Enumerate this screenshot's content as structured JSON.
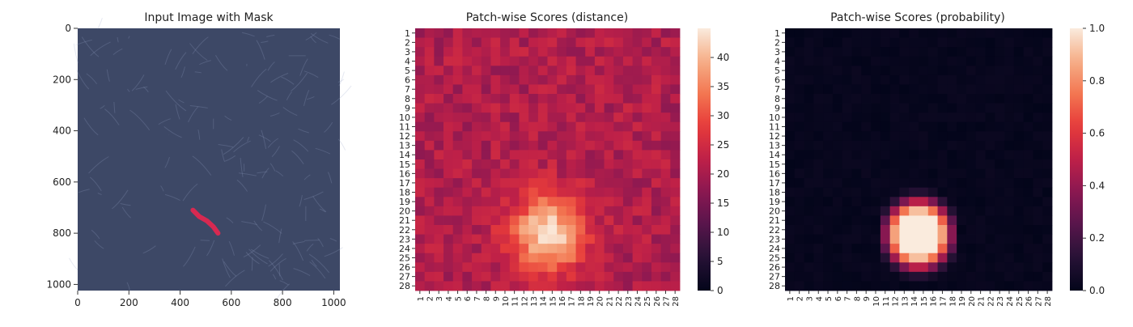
{
  "chart_data": [
    {
      "type": "image",
      "title": "Input Image with Mask",
      "xlim": [
        0,
        1024
      ],
      "ylim": [
        1024,
        0
      ],
      "xticks": [
        0,
        200,
        400,
        600,
        800,
        1000
      ],
      "yticks": [
        0,
        200,
        400,
        600,
        800,
        1000
      ],
      "background_color": "#3d4866",
      "mask_color": "#e8264f",
      "mask_segment": [
        [
          450,
          710
        ],
        [
          475,
          735
        ],
        [
          505,
          752
        ],
        [
          530,
          775
        ],
        [
          548,
          800
        ]
      ]
    },
    {
      "type": "heatmap",
      "title": "Patch-wise Scores (distance)",
      "grid_size": 28,
      "tick_labels": [
        "1",
        "2",
        "3",
        "4",
        "5",
        "6",
        "7",
        "8",
        "9",
        "10",
        "11",
        "12",
        "13",
        "14",
        "15",
        "16",
        "17",
        "18",
        "19",
        "20",
        "21",
        "22",
        "23",
        "24",
        "25",
        "26",
        "27",
        "28"
      ],
      "colorbar": {
        "min": 0,
        "max": 45,
        "ticks": [
          0,
          5,
          10,
          15,
          20,
          25,
          30,
          35,
          40
        ]
      },
      "hotspot": {
        "center": [
          14.5,
          22.5
        ],
        "peak": 44
      },
      "base_value": 21,
      "colormap": "rocket"
    },
    {
      "type": "heatmap",
      "title": "Patch-wise Scores (probability)",
      "grid_size": 28,
      "tick_labels": [
        "1",
        "2",
        "3",
        "4",
        "5",
        "6",
        "7",
        "8",
        "9",
        "10",
        "11",
        "12",
        "13",
        "14",
        "15",
        "16",
        "17",
        "18",
        "19",
        "20",
        "21",
        "22",
        "23",
        "24",
        "25",
        "26",
        "27",
        "28"
      ],
      "colorbar": {
        "min": 0.0,
        "max": 1.0,
        "ticks": [
          "0.0",
          "0.2",
          "0.4",
          "0.6",
          "0.8",
          "1.0"
        ]
      },
      "hotspot": {
        "center": [
          14.5,
          22.5
        ],
        "peak": 1.0
      },
      "base_value": 0.0,
      "colormap": "rocket"
    }
  ]
}
